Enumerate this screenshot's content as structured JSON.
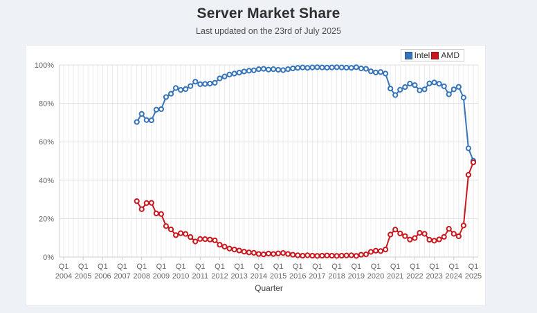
{
  "theme": {
    "page_background": "#eef2f7",
    "card_background": "#ffffff",
    "grid_color_vertical": "#ececec",
    "grid_color_horizontal": "#dfdfdf",
    "axis_line_color": "#cccccc",
    "axis_text_color": "#666666"
  },
  "chart_data": {
    "type": "line",
    "title": "Server Market Share",
    "subtitle": "Last updated on the 23rd of July 2025",
    "xlabel": "Quarter",
    "ylabel": "",
    "ylim": [
      0,
      100
    ],
    "y_ticks": [
      0,
      20,
      40,
      60,
      80,
      100
    ],
    "y_tick_suffix": "%",
    "grid": true,
    "legend_position": "top-right",
    "x_axis": {
      "unit": "quarter",
      "range_start": "Q1 2004",
      "range_end": "Q2 2025",
      "tick_label_line1": "Q1",
      "tick_years": [
        2004,
        2005,
        2006,
        2007,
        2008,
        2009,
        2010,
        2011,
        2012,
        2013,
        2014,
        2015,
        2016,
        2017,
        2018,
        2019,
        2020,
        2021,
        2022,
        2023,
        2024,
        2025
      ]
    },
    "series_start_quarter": "Q4 2007",
    "series_end_quarter": "Q1 2025",
    "series": [
      {
        "name": "Intel",
        "color": "#3674b9",
        "values": [
          70.3,
          74.5,
          71.3,
          71.2,
          76.7,
          77.0,
          83.3,
          85.0,
          88.0,
          87.0,
          87.4,
          89.0,
          91.3,
          90.0,
          90.1,
          90.3,
          90.7,
          93.0,
          94.0,
          95.0,
          95.5,
          96.0,
          96.6,
          97.0,
          97.2,
          97.8,
          98.0,
          97.6,
          97.8,
          97.5,
          97.3,
          97.8,
          98.2,
          98.5,
          98.7,
          98.5,
          98.7,
          98.8,
          98.7,
          98.6,
          98.7,
          98.8,
          98.7,
          98.6,
          98.5,
          98.8,
          98.2,
          98.0,
          96.7,
          96.1,
          96.3,
          95.5,
          87.7,
          84.3,
          87.1,
          88.5,
          90.3,
          89.5,
          86.8,
          87.3,
          90.4,
          90.9,
          90.2,
          88.9,
          84.7,
          87.3,
          88.6,
          83.0,
          56.6,
          50.1
        ]
      },
      {
        "name": "AMD",
        "color": "#c8171e",
        "values": [
          29.1,
          24.9,
          28.1,
          28.2,
          22.7,
          22.4,
          16.1,
          14.4,
          11.4,
          12.4,
          12.0,
          10.4,
          8.1,
          9.4,
          9.3,
          9.1,
          8.7,
          6.4,
          5.4,
          4.4,
          3.9,
          3.4,
          2.8,
          2.4,
          2.2,
          1.6,
          1.4,
          1.8,
          1.6,
          1.9,
          2.1,
          1.6,
          1.2,
          0.9,
          0.7,
          0.9,
          0.7,
          0.6,
          0.7,
          0.8,
          0.7,
          0.6,
          0.7,
          0.8,
          0.9,
          0.6,
          1.2,
          1.4,
          2.7,
          3.3,
          3.1,
          3.9,
          11.7,
          14.3,
          12.3,
          10.9,
          9.1,
          9.9,
          12.6,
          12.1,
          9.0,
          8.5,
          9.2,
          10.5,
          14.7,
          12.1,
          10.8,
          16.4,
          42.8,
          49.3
        ]
      }
    ]
  }
}
